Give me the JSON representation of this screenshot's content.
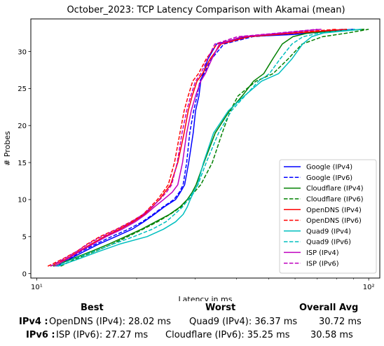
{
  "chart_data": {
    "type": "line",
    "title": "October_2023: TCP Latency Comparison with Akamai (mean)",
    "xlabel": "Latency in ms",
    "ylabel": "# Probes",
    "xscale": "log",
    "xlim": [
      9.6,
      108
    ],
    "ylim": [
      -0.6,
      34.4
    ],
    "xticks": [
      10,
      100
    ],
    "xtick_labels": [
      "10¹",
      "10²"
    ],
    "yticks": [
      0,
      5,
      10,
      15,
      20,
      25,
      30
    ],
    "grid": false,
    "legend_position": "lower right",
    "series": [
      {
        "name": "Google (IPv4)",
        "color": "#0000ff",
        "dash": "solid",
        "x": [
          11.5,
          12.6,
          13.9,
          15.4,
          17.3,
          19.4,
          21.0,
          22.6,
          24.2,
          26.2,
          27.1,
          27.9,
          28.7,
          29.6,
          30.1,
          30.8,
          31.2,
          31.7,
          32.8,
          34.8,
          42.4,
          59.3,
          90.0
        ],
        "y": [
          1,
          2,
          3,
          4,
          5,
          6,
          7,
          8,
          9,
          10,
          11,
          12,
          15,
          19,
          22,
          24,
          26,
          27,
          29,
          31,
          32,
          32.3,
          33
        ]
      },
      {
        "name": "Google (IPv6)",
        "color": "#0000ff",
        "dash": "dashed",
        "x": [
          11.3,
          12.5,
          13.6,
          15.1,
          16.8,
          18.9,
          20.8,
          22.4,
          24.0,
          25.9,
          26.9,
          27.6,
          28.3,
          28.9,
          29.7,
          30.4,
          31.0,
          31.9,
          33.6,
          36.6,
          44.7,
          62.1,
          84.0
        ],
        "y": [
          1,
          2,
          3,
          4,
          5,
          6,
          7,
          8,
          9,
          10,
          11,
          12,
          15,
          19,
          22,
          24,
          26,
          27,
          29,
          31,
          32,
          32.5,
          33
        ]
      },
      {
        "name": "Cloudflare (IPv4)",
        "color": "#008000",
        "dash": "solid",
        "x": [
          11.2,
          12.8,
          14.6,
          16.5,
          18.5,
          20.7,
          22.8,
          25.1,
          27.0,
          28.4,
          29.4,
          30.2,
          31.9,
          34.5,
          38.1,
          41.6,
          45.0,
          48.3,
          51.4,
          54.9,
          59.1,
          65.6,
          97.0
        ],
        "y": [
          1,
          2,
          3,
          4,
          5,
          6,
          7,
          8,
          9,
          10,
          11,
          12,
          15,
          19,
          22,
          24,
          26,
          27,
          29,
          31,
          32,
          32.5,
          33
        ]
      },
      {
        "name": "Cloudflare (IPv6)",
        "color": "#008000",
        "dash": "dashed",
        "x": [
          11.8,
          13.1,
          15.0,
          16.9,
          18.8,
          20.9,
          23.1,
          25.2,
          27.2,
          28.7,
          29.8,
          31.2,
          33.8,
          36.2,
          38.3,
          40.4,
          45.8,
          51.5,
          57.2,
          63.0,
          72.6,
          86.4,
          100.0
        ],
        "y": [
          1,
          2,
          3,
          4,
          5,
          6,
          7,
          8,
          9,
          10,
          11,
          12,
          15,
          19,
          22,
          24,
          26,
          27,
          29,
          31,
          32,
          32.5,
          33
        ]
      },
      {
        "name": "OpenDNS (IPv4)",
        "color": "#ff0000",
        "dash": "solid",
        "x": [
          11.0,
          12.3,
          13.4,
          14.6,
          16.0,
          17.8,
          19.5,
          21.1,
          22.3,
          23.4,
          24.3,
          25.3,
          26.6,
          27.8,
          28.6,
          29.4,
          30.4,
          31.6,
          33.3,
          35.9,
          43.6,
          60.5,
          86.0
        ],
        "y": [
          1,
          2,
          3,
          4,
          5,
          6,
          7,
          8,
          9,
          10,
          11,
          12,
          15,
          19,
          22,
          24,
          26,
          27,
          29,
          31,
          32,
          32.5,
          33
        ]
      },
      {
        "name": "OpenDNS (IPv6)",
        "color": "#ff0000",
        "dash": "dashed",
        "x": [
          10.8,
          12.0,
          13.2,
          14.2,
          15.5,
          17.4,
          19.2,
          20.9,
          22.0,
          23.1,
          24.0,
          24.9,
          26.0,
          27.0,
          27.8,
          28.6,
          29.5,
          30.7,
          32.4,
          34.9,
          41.9,
          57.8,
          80.0
        ],
        "y": [
          1,
          2,
          3,
          4,
          5,
          6,
          7,
          8,
          9,
          10,
          11,
          12,
          15,
          19,
          22,
          24,
          26,
          27,
          29,
          31,
          32,
          32.5,
          33
        ]
      },
      {
        "name": "Quad9 (IPv4)",
        "color": "#00bfbf",
        "dash": "solid",
        "x": [
          11.6,
          13.4,
          15.4,
          17.8,
          21.5,
          24.1,
          26.2,
          27.6,
          28.4,
          29.0,
          29.7,
          30.5,
          31.8,
          34.1,
          37.8,
          42.2,
          47.6,
          53.5,
          58.7,
          63.2,
          67.3,
          73.1,
          95.0
        ],
        "y": [
          1,
          2,
          3,
          4,
          5,
          6,
          7,
          8,
          9,
          10,
          11,
          12,
          15,
          19,
          22,
          24,
          26,
          27,
          29,
          31,
          32,
          32.5,
          33
        ]
      },
      {
        "name": "Quad9 (IPv6)",
        "color": "#00bfbf",
        "dash": "dashed",
        "x": [
          11.4,
          12.9,
          14.9,
          17.0,
          19.6,
          22.3,
          24.5,
          26.0,
          27.5,
          28.6,
          29.6,
          30.6,
          32.4,
          35.3,
          38.6,
          42.4,
          46.6,
          50.2,
          54.1,
          58.7,
          63.4,
          71.2,
          91.0
        ],
        "y": [
          1,
          2,
          3,
          4,
          5,
          6,
          7,
          8,
          9,
          10,
          11,
          12,
          15,
          19,
          22,
          24,
          26,
          27,
          29,
          31,
          32,
          32.5,
          33
        ]
      },
      {
        "name": "ISP (IPv4)",
        "color": "#bf00bf",
        "dash": "solid",
        "x": [
          11.3,
          12.4,
          13.5,
          14.8,
          16.2,
          18.1,
          19.8,
          21.3,
          22.6,
          24.1,
          25.6,
          26.6,
          27.5,
          28.3,
          29.2,
          30.1,
          31.2,
          32.2,
          33.7,
          35.5,
          41.5,
          55.1,
          72.0
        ],
        "y": [
          1,
          2,
          3,
          4,
          5,
          6,
          7,
          8,
          9,
          10,
          11,
          12,
          15,
          19,
          22,
          24,
          26,
          27,
          29,
          31,
          32,
          32.5,
          33
        ]
      },
      {
        "name": "ISP (IPv6)",
        "color": "#bf00bf",
        "dash": "dashed",
        "x": [
          11.0,
          12.1,
          13.2,
          14.3,
          15.7,
          17.5,
          19.3,
          20.9,
          22.2,
          23.5,
          24.6,
          25.5,
          26.5,
          27.4,
          28.3,
          29.1,
          30.1,
          31.2,
          32.7,
          34.4,
          40.2,
          53.6,
          70.0
        ],
        "y": [
          1,
          2,
          3,
          4,
          5,
          6,
          7,
          8,
          9,
          10,
          11,
          12,
          15,
          19,
          22,
          24,
          26,
          27,
          29,
          31,
          32,
          32.5,
          33
        ]
      }
    ]
  },
  "summary": {
    "headers": {
      "best": "Best",
      "worst": "Worst",
      "avg": "Overall Avg"
    },
    "rows": [
      {
        "label": "IPv4 :",
        "best": "OpenDNS (IPv4): 28.02 ms",
        "worst": "Quad9 (IPv4): 36.37 ms",
        "avg": "30.72 ms"
      },
      {
        "label": "IPv6 :",
        "best": "ISP (IPv6): 27.27 ms",
        "worst": "Cloudflare (IPv6): 35.25 ms",
        "avg": "30.58 ms"
      }
    ]
  }
}
